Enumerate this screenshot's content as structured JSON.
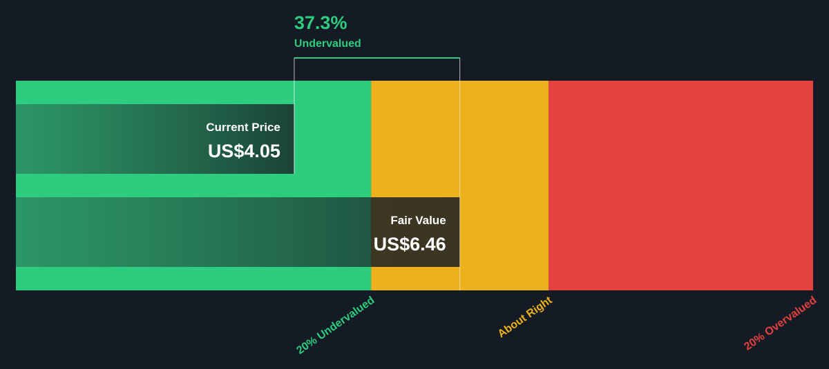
{
  "chart_data": {
    "type": "bar",
    "currency": "US$",
    "current_price": {
      "label": "Current Price",
      "value": 4.05,
      "display": "US$4.05"
    },
    "fair_value": {
      "label": "Fair Value",
      "value": 6.46,
      "display": "US$6.46"
    },
    "discount": {
      "percent": "37.3%",
      "status": "Undervalued"
    },
    "zones": [
      {
        "name": "undervalued",
        "label": "20% Undervalued",
        "color": "#2ecc7f",
        "from": 0,
        "to": 5.168
      },
      {
        "name": "about-right",
        "label": "About Right",
        "color": "#ecb11b",
        "from": 5.168,
        "to": 7.752
      },
      {
        "name": "overvalued",
        "label": "20% Overvalued",
        "color": "#e54141",
        "from": 7.752,
        "to": 11.6
      }
    ],
    "xlim": [
      0,
      11.6
    ],
    "colors": {
      "background": "#151b24",
      "bar_fill": "#1d4e3d",
      "overlay_dark": "#4a3f22",
      "accent": "#2ecc7f",
      "text": "#ffffff"
    }
  }
}
